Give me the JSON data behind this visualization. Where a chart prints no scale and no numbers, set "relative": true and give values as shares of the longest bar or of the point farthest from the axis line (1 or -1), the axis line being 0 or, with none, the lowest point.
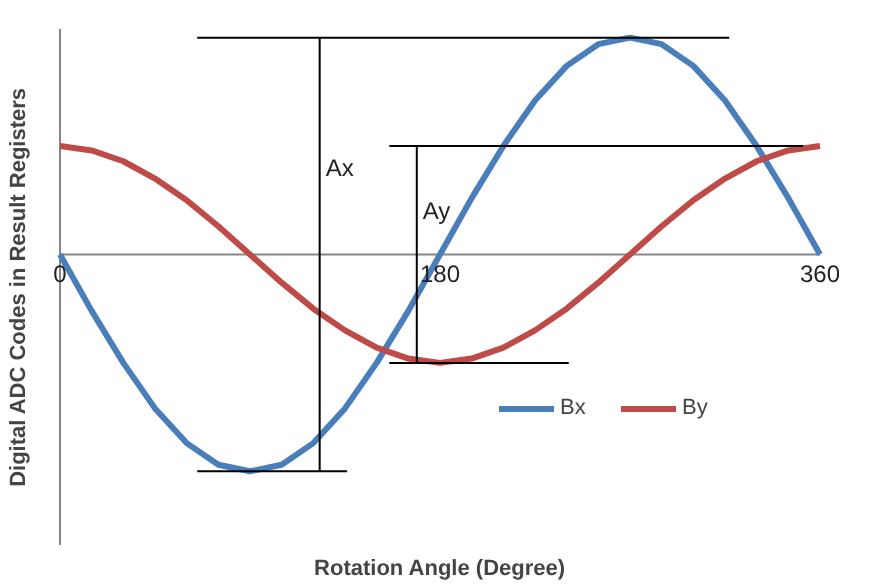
{
  "chart_data": {
    "type": "line",
    "xlabel": "Rotation Angle (Degree)",
    "ylabel": "Digital ADC Codes in Result Registers",
    "x": [
      0,
      15,
      30,
      45,
      60,
      75,
      90,
      105,
      120,
      135,
      150,
      165,
      180,
      195,
      210,
      225,
      240,
      255,
      270,
      285,
      300,
      315,
      330,
      345,
      360
    ],
    "xlim": [
      0,
      360
    ],
    "xticks": [
      0,
      180,
      360
    ],
    "relative": true,
    "grid": false,
    "legend": "bottom right",
    "marker": "none",
    "line_style": "solid",
    "series": [
      {
        "name": "Bx",
        "color": "#4a7ebb",
        "values": [
          0,
          -0.26,
          -0.5,
          -0.71,
          -0.87,
          -0.97,
          -1,
          -0.97,
          -0.87,
          -0.71,
          -0.5,
          -0.26,
          0,
          0.26,
          0.5,
          0.71,
          0.87,
          0.97,
          1,
          0.97,
          0.87,
          0.71,
          0.5,
          0.26,
          0
        ]
      },
      {
        "name": "By",
        "color": "#be4b48",
        "values": [
          0.5,
          0.48,
          0.43,
          0.35,
          0.25,
          0.13,
          0,
          -0.13,
          -0.25,
          -0.35,
          -0.43,
          -0.48,
          -0.5,
          -0.48,
          -0.43,
          -0.35,
          -0.25,
          -0.13,
          0,
          0.13,
          0.25,
          0.35,
          0.43,
          0.48,
          0.5
        ]
      }
    ],
    "ref_lines": [
      {
        "axis": "x",
        "value": 123,
        "label": "Ax"
      },
      {
        "axis": "x",
        "value": 169,
        "label": "Ay"
      },
      {
        "axis": "y",
        "value": 1
      },
      {
        "axis": "y",
        "value": -1
      },
      {
        "axis": "y",
        "value": 0.5
      },
      {
        "axis": "y",
        "value": -0.5
      }
    ]
  }
}
